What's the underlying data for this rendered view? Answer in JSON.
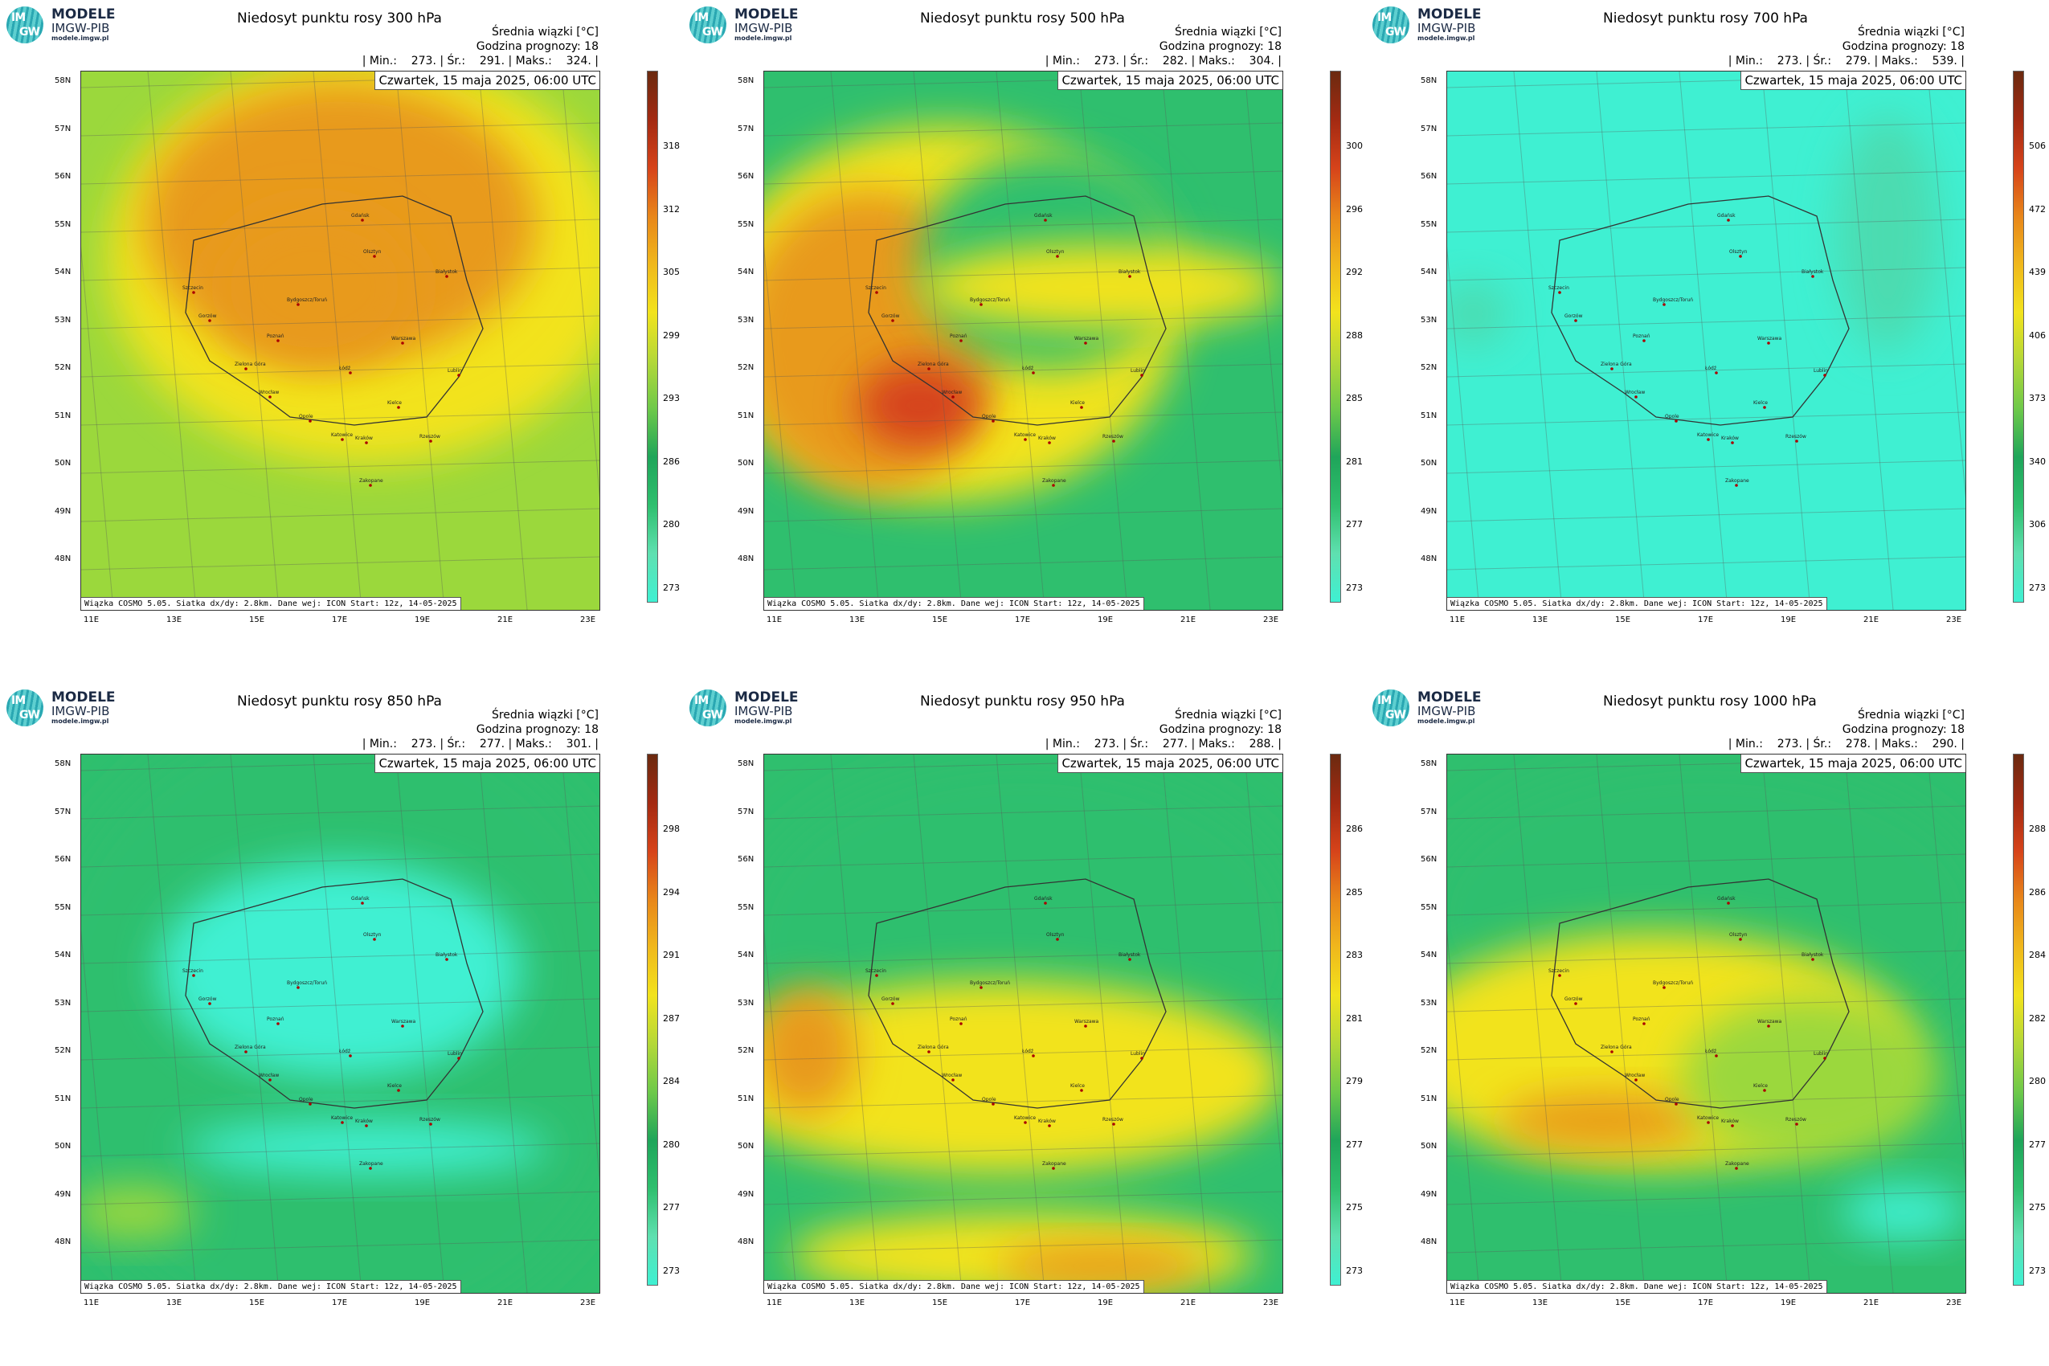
{
  "logo": {
    "title": "MODELE",
    "subtitle": "IMGW-PIB",
    "url": "modele.imgw.pl",
    "mark_top": "IM",
    "mark_bottom": "GW"
  },
  "header_line1": "Średnia wiązki [°C]",
  "header_line2": "Godzina prognozy: 18",
  "date_label": "Czwartek, 15 maja 2025, 06:00 UTC",
  "credit": "Wiązka COSMO 5.05. Siatka dx/dy: 2.8km. Dane wej: ICON Start: 12z, 14-05-2025",
  "lat_labels": [
    "58N",
    "57N",
    "56N",
    "55N",
    "54N",
    "53N",
    "52N",
    "51N",
    "50N",
    "49N",
    "48N"
  ],
  "lon_labels": [
    "11E",
    "13E",
    "15E",
    "17E",
    "19E",
    "21E",
    "23E"
  ],
  "cities": [
    "Gdańsk",
    "Olsztyn",
    "Szczecin",
    "Bydgoszcz/Toruń",
    "Białystok",
    "Gorzów",
    "Poznań",
    "Warszawa",
    "Zielona Góra",
    "Łódź",
    "Lublin",
    "Wrocław",
    "Opole",
    "Kielce",
    "Katowice",
    "Kraków",
    "Rzeszów",
    "Zakopane"
  ],
  "colors": {
    "cyan": "#3ff0d2",
    "green": "#2fbf6e",
    "lime": "#9bd83c",
    "yellow": "#f2e31d",
    "orange": "#e89a1a",
    "red": "#d6431a",
    "brown": "#6b2a10"
  },
  "chart_data": [
    {
      "type": "heatmap",
      "title": "Niedosyt punktu rosy 300 hPa",
      "min": "273.",
      "mean": "291.",
      "max": "324.",
      "colorbar_ticks": [
        "318",
        "312",
        "305",
        "299",
        "293",
        "286",
        "280",
        "273"
      ]
    },
    {
      "type": "heatmap",
      "title": "Niedosyt punktu rosy 500 hPa",
      "min": "273.",
      "mean": "282.",
      "max": "304.",
      "colorbar_ticks": [
        "300",
        "296",
        "292",
        "288",
        "285",
        "281",
        "277",
        "273"
      ]
    },
    {
      "type": "heatmap",
      "title": "Niedosyt punktu rosy 700 hPa",
      "min": "273.",
      "mean": "279.",
      "max": "539.",
      "colorbar_ticks": [
        "506",
        "472",
        "439",
        "406",
        "373",
        "340",
        "306",
        "273"
      ]
    },
    {
      "type": "heatmap",
      "title": "Niedosyt punktu rosy 850 hPa",
      "min": "273.",
      "mean": "277.",
      "max": "301.",
      "colorbar_ticks": [
        "298",
        "294",
        "291",
        "287",
        "284",
        "280",
        "277",
        "273"
      ]
    },
    {
      "type": "heatmap",
      "title": "Niedosyt punktu rosy 950 hPa",
      "min": "273.",
      "mean": "277.",
      "max": "288.",
      "colorbar_ticks": [
        "286",
        "285",
        "283",
        "281",
        "279",
        "277",
        "275",
        "273"
      ]
    },
    {
      "type": "heatmap",
      "title": "Niedosyt punktu rosy 1000 hPa",
      "min": "273.",
      "mean": "278.",
      "max": "290.",
      "colorbar_ticks": [
        "288",
        "286",
        "284",
        "282",
        "280",
        "277",
        "275",
        "273"
      ]
    }
  ]
}
